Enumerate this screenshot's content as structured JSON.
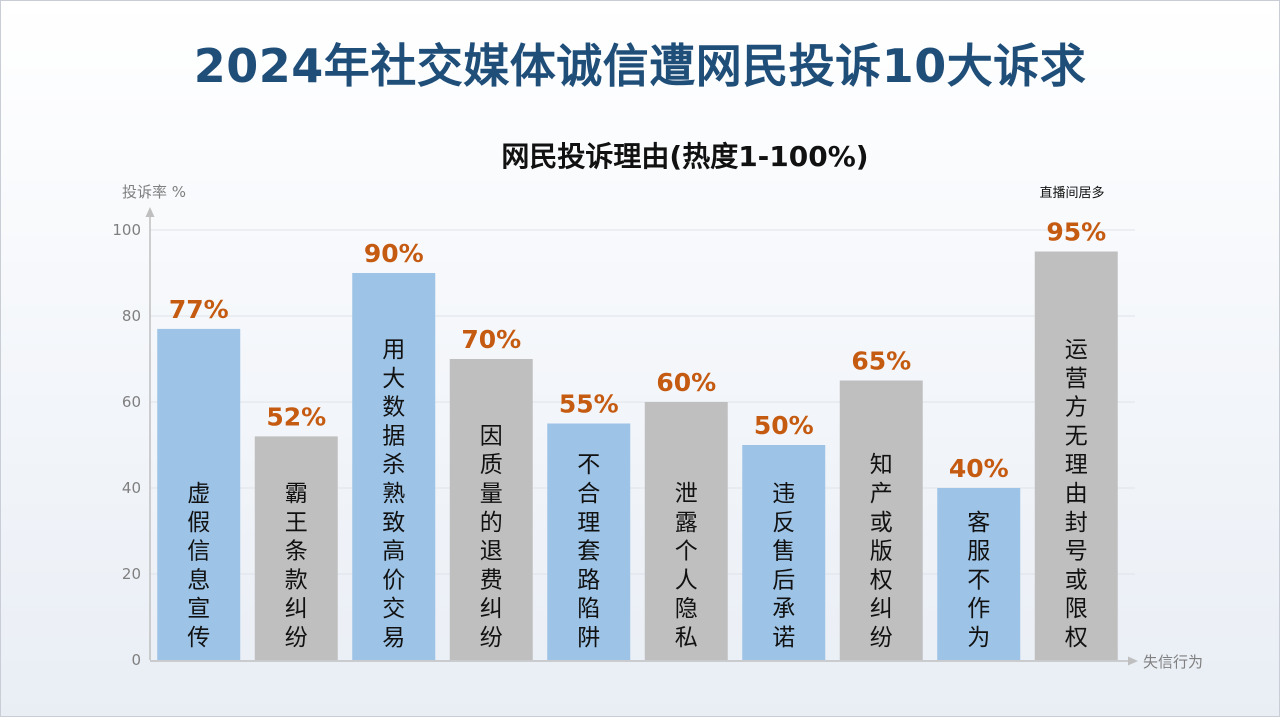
{
  "title": "2024年社交媒体诚信遭网民投诉10大诉求",
  "chart_data": {
    "type": "bar",
    "title": "网民投诉理由(热度1-100%)",
    "ylabel": "投诉率 %",
    "xlabel": "失信行为",
    "ylim": [
      0,
      100
    ],
    "yticks": [
      0,
      20,
      40,
      60,
      80,
      100
    ],
    "grid": true,
    "categories": [
      "虚假信息宣传",
      "霸王条款纠纷",
      "用大数据杀熟致高价交易",
      "因质量的退费纠纷",
      "不合理套路陷阱",
      "泄露个人隐私",
      "违反售后承诺",
      "知产或版权纠纷",
      "客服不作为",
      "运营方无理由封号或限权"
    ],
    "values": [
      77,
      52,
      90,
      70,
      55,
      60,
      50,
      65,
      40,
      95
    ],
    "data_labels": [
      "77%",
      "52%",
      "90%",
      "70%",
      "55%",
      "60%",
      "50%",
      "65%",
      "40%",
      "95%"
    ],
    "bar_colors": [
      "#9dc3e6",
      "#bfbfbf",
      "#9dc3e6",
      "#bfbfbf",
      "#9dc3e6",
      "#bfbfbf",
      "#9dc3e6",
      "#bfbfbf",
      "#9dc3e6",
      "#bfbfbf"
    ],
    "label_color": "#c55a11",
    "annotation": "直播间居多"
  }
}
